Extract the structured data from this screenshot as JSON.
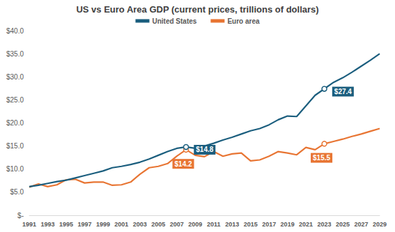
{
  "chart_data": {
    "type": "line",
    "title": "US vs Euro Area GDP (current prices, trillions of dollars)",
    "categories": [
      "1991",
      null,
      "1993",
      null,
      "1995",
      null,
      "1997",
      null,
      "1999",
      null,
      "2001",
      null,
      "2003",
      null,
      "2005",
      null,
      "2007",
      null,
      "2009",
      null,
      "2011",
      null,
      "2013",
      null,
      "2015",
      null,
      "2017",
      null,
      "2019",
      null,
      "2021",
      null,
      "2023",
      null,
      "2025",
      null,
      "2027",
      null,
      "2029"
    ],
    "series": [
      {
        "name": "United States",
        "color": "#1b5e7e",
        "values": [
          6.2,
          6.5,
          6.9,
          7.3,
          7.6,
          8.1,
          8.6,
          9.1,
          9.6,
          10.3,
          10.6,
          11.0,
          11.5,
          12.2,
          13.0,
          13.8,
          14.5,
          14.8,
          14.5,
          15.0,
          15.6,
          16.3,
          16.9,
          17.6,
          18.3,
          18.8,
          19.6,
          20.7,
          21.5,
          21.4,
          23.7,
          26.0,
          27.4,
          28.8,
          29.8,
          31.0,
          32.3,
          33.6,
          35.0
        ],
        "value_labels": [
          null,
          null,
          null,
          null,
          null,
          null,
          null,
          null,
          null,
          null,
          null,
          null,
          null,
          null,
          null,
          null,
          null,
          "$14.8",
          null,
          null,
          null,
          null,
          null,
          null,
          null,
          null,
          null,
          null,
          null,
          null,
          null,
          null,
          "$27.4",
          null,
          null,
          null,
          null,
          null,
          null
        ]
      },
      {
        "name": "Euro area",
        "color": "#e87533",
        "values": [
          6.1,
          6.8,
          6.2,
          6.6,
          7.7,
          7.8,
          7.0,
          7.2,
          7.2,
          6.5,
          6.6,
          7.2,
          8.9,
          10.3,
          10.6,
          11.2,
          12.8,
          14.2,
          13.0,
          12.7,
          13.8,
          12.8,
          13.3,
          13.5,
          11.8,
          12.0,
          12.8,
          13.8,
          13.5,
          13.1,
          14.7,
          14.2,
          15.5,
          16.0,
          16.5,
          17.1,
          17.6,
          18.2,
          18.8
        ],
        "value_labels": [
          null,
          null,
          null,
          null,
          null,
          null,
          null,
          null,
          null,
          null,
          null,
          null,
          null,
          null,
          null,
          null,
          null,
          "$14.2",
          null,
          null,
          null,
          null,
          null,
          null,
          null,
          null,
          null,
          null,
          null,
          null,
          null,
          null,
          "$15.5",
          null,
          null,
          null,
          null,
          null,
          null
        ]
      }
    ],
    "ylim": [
      0,
      40
    ],
    "yticks": [
      {
        "value": 0,
        "label": "$-"
      },
      {
        "value": 5,
        "label": "$5.0"
      },
      {
        "value": 10,
        "label": "$10.0"
      },
      {
        "value": 15,
        "label": "$15.0"
      },
      {
        "value": 20,
        "label": "$20.0"
      },
      {
        "value": 25,
        "label": "$25.0"
      },
      {
        "value": 30,
        "label": "$30.0"
      },
      {
        "value": 35,
        "label": "$35.0"
      },
      {
        "value": 40,
        "label": "$40.0"
      }
    ],
    "grid": false,
    "legend": "top"
  }
}
